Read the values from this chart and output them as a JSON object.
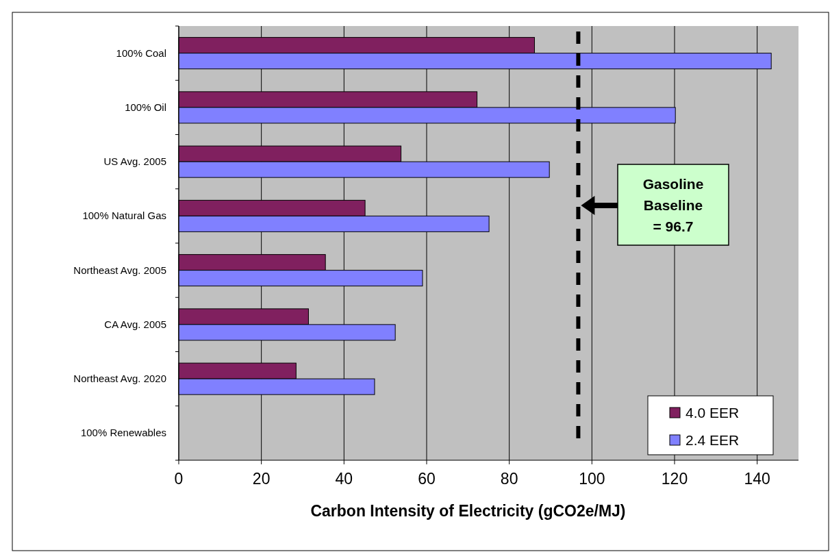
{
  "chart_data": {
    "type": "bar",
    "orientation": "horizontal",
    "xlabel": "Carbon Intensity of Electricity (gCO2e/MJ)",
    "categories": [
      "100% Coal",
      "100% Oil",
      "US Avg. 2005",
      "100% Natural Gas",
      "Northeast Avg. 2005",
      "CA Avg. 2005",
      "Northeast Avg. 2020",
      "100% Renewables"
    ],
    "series": [
      {
        "name": "4.0 EER",
        "color": "#80205f",
        "values": [
          86.1,
          72.2,
          53.8,
          45.1,
          35.5,
          31.4,
          28.4,
          0
        ]
      },
      {
        "name": "2.4 EER",
        "color": "#8080ff",
        "values": [
          143.4,
          120.2,
          89.7,
          75.1,
          59.0,
          52.4,
          47.4,
          0
        ]
      }
    ],
    "xlim": [
      0,
      150
    ],
    "xticks": [
      0,
      20,
      40,
      60,
      80,
      100,
      120,
      140
    ],
    "grid": "x",
    "legend": "bottom right",
    "annotations": [
      "Gasoline Baseline = 96.7"
    ],
    "ref_lines": [
      {
        "axis": "x",
        "value": 96.7,
        "line_style": "dashed",
        "color": "#000000"
      }
    ]
  }
}
